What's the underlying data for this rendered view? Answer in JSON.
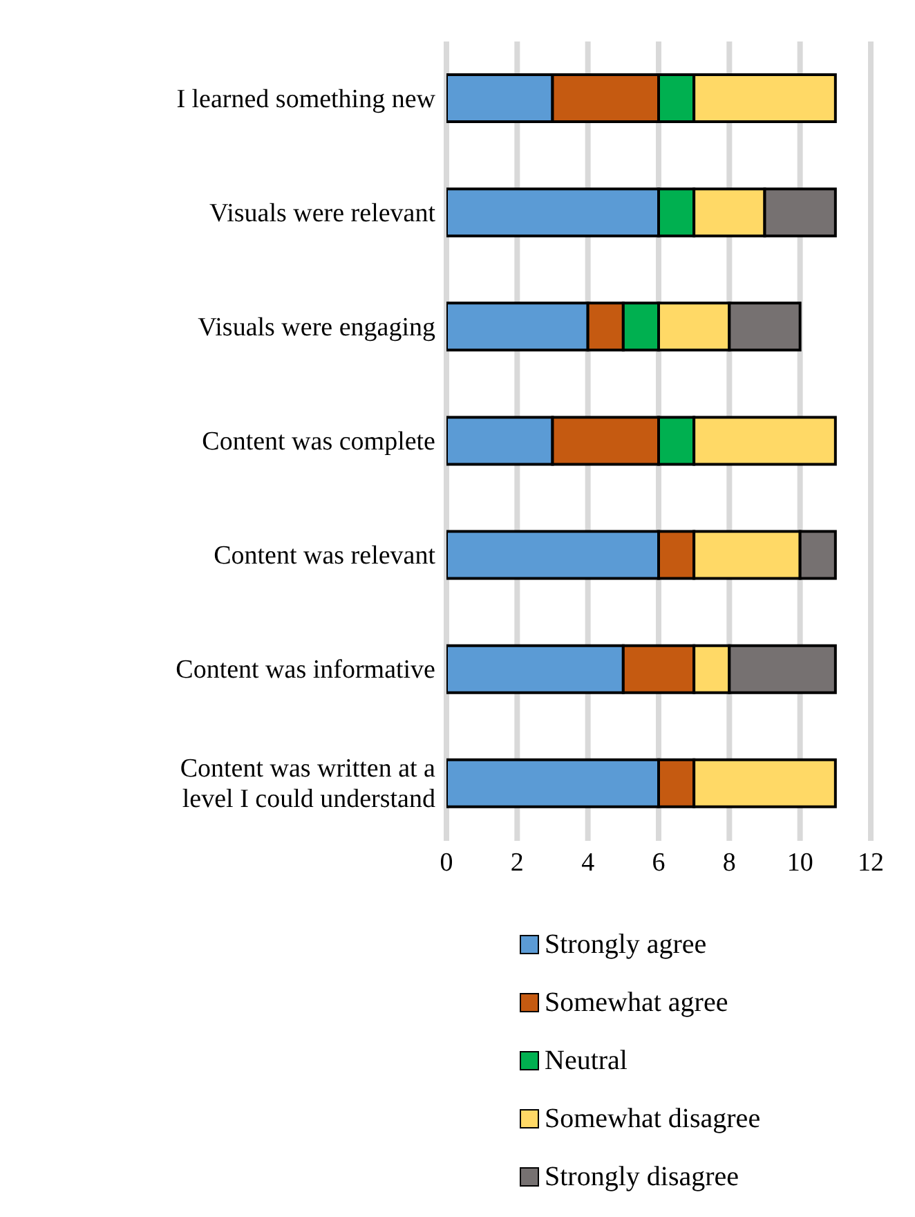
{
  "chart_data": {
    "type": "bar",
    "orientation": "horizontal",
    "stacked": true,
    "categories": [
      "I learned something new",
      "Visuals were relevant",
      "Visuals were engaging",
      "Content was complete",
      "Content was relevant",
      "Content was informative",
      "Content was written at a level I could understand"
    ],
    "series": [
      {
        "name": "Strongly agree",
        "color": "#5b9bd5",
        "values": [
          3,
          6,
          4,
          3,
          6,
          5,
          6
        ]
      },
      {
        "name": "Somewhat agree",
        "color": "#c55a11",
        "values": [
          3,
          0,
          1,
          3,
          1,
          2,
          1
        ]
      },
      {
        "name": "Neutral",
        "color": "#00b050",
        "values": [
          1,
          1,
          1,
          1,
          0,
          0,
          0
        ]
      },
      {
        "name": "Somewhat disagree",
        "color": "#ffd966",
        "values": [
          4,
          2,
          2,
          4,
          3,
          1,
          4
        ]
      },
      {
        "name": "Strongly disagree",
        "color": "#767171",
        "values": [
          0,
          2,
          2,
          0,
          1,
          3,
          0
        ]
      }
    ],
    "xlim": [
      0,
      12
    ],
    "xticks": [
      0,
      2,
      4,
      6,
      8,
      10,
      12
    ],
    "grid": "x",
    "legend": "bottom"
  }
}
